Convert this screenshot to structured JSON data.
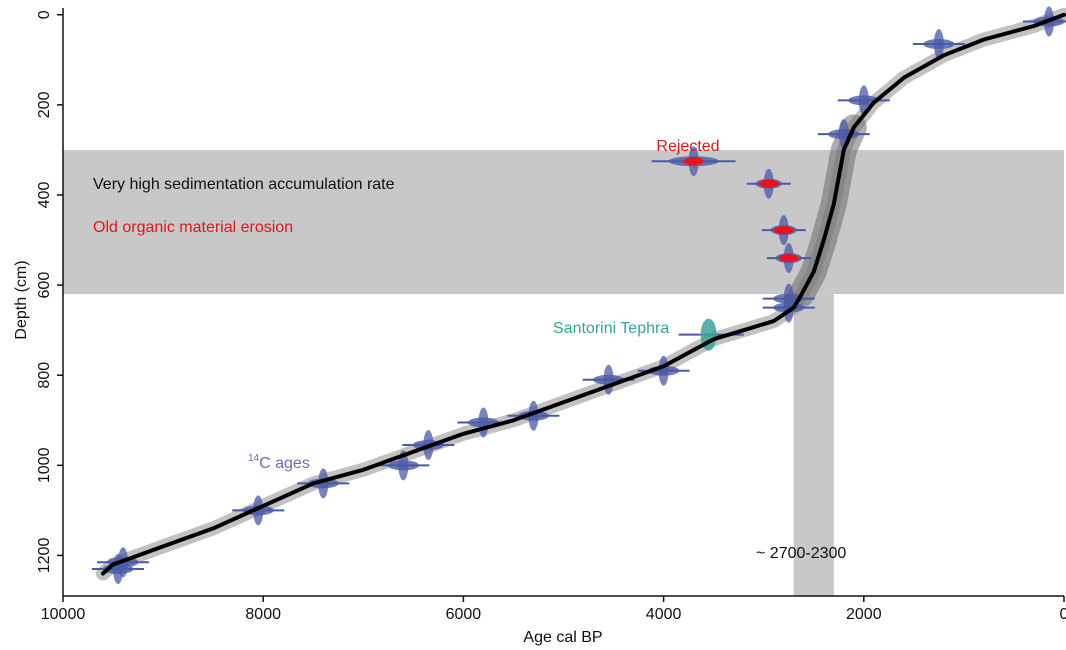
{
  "colors": {
    "model_line": "#000000",
    "uncertainty_band": "#8f8f8f",
    "highlight_band": "#c8c8c8",
    "c14_dates": "#4b5aa8",
    "rejected": "#e8131b",
    "tephra": "#3aa39b",
    "axis": "#111111"
  },
  "chart_data": {
    "type": "line",
    "xlabel": "Age cal BP",
    "ylabel": "Depth (cm)",
    "xlim": [
      10000,
      0
    ],
    "ylim": [
      1290,
      -15
    ],
    "x_ticks": [
      10000,
      8000,
      6000,
      4000,
      2000,
      0
    ],
    "x_tick_labels": [
      "10000",
      "8000",
      "6000",
      "4000",
      "2000",
      "0"
    ],
    "y_ticks": [
      0,
      200,
      400,
      600,
      800,
      1000,
      1200
    ],
    "y_tick_labels": [
      "0",
      "200",
      "400",
      "600",
      "800",
      "1000",
      "1200"
    ],
    "age_depth_model": {
      "age": [
        0,
        300,
        800,
        1200,
        1600,
        1900,
        2100,
        2200,
        2250,
        2300,
        2400,
        2500,
        2620,
        2700,
        2900,
        3200,
        3500,
        4000,
        4500,
        5000,
        5500,
        6000,
        6500,
        7000,
        7500,
        8000,
        8500,
        9000,
        9500,
        9600
      ],
      "depth": [
        0,
        25,
        55,
        90,
        140,
        195,
        250,
        300,
        360,
        420,
        500,
        570,
        620,
        650,
        680,
        700,
        720,
        780,
        820,
        860,
        900,
        930,
        970,
        1010,
        1040,
        1090,
        1140,
        1180,
        1220,
        1240
      ]
    },
    "highlight_depth_band": [
      300,
      620
    ],
    "highlight_age_band": [
      2700,
      2300
    ],
    "c14_dates": [
      {
        "age": 150,
        "depth": 15
      },
      {
        "age": 1250,
        "depth": 65
      },
      {
        "age": 2000,
        "depth": 190
      },
      {
        "age": 2200,
        "depth": 265
      },
      {
        "age": 2750,
        "depth": 630
      },
      {
        "age": 2750,
        "depth": 650
      },
      {
        "age": 4000,
        "depth": 790
      },
      {
        "age": 4550,
        "depth": 810
      },
      {
        "age": 5300,
        "depth": 890
      },
      {
        "age": 5800,
        "depth": 905
      },
      {
        "age": 6350,
        "depth": 955
      },
      {
        "age": 6600,
        "depth": 1000
      },
      {
        "age": 7400,
        "depth": 1040
      },
      {
        "age": 8050,
        "depth": 1100
      },
      {
        "age": 9400,
        "depth": 1215
      },
      {
        "age": 9450,
        "depth": 1230
      }
    ],
    "rejected_dates": [
      {
        "age": 3700,
        "depth": 325
      },
      {
        "age": 2950,
        "depth": 375
      },
      {
        "age": 2800,
        "depth": 478
      },
      {
        "age": 2750,
        "depth": 540
      }
    ],
    "tephra": {
      "age": 3550,
      "depth": 710
    },
    "annotations": {
      "high_rate": "Very high sedimentation accumulation rate",
      "erosion": "Old organic material erosion",
      "rejected": "Rejected",
      "santorini": "Santorini Tephra",
      "c14_sup": "14",
      "c14_rest": "C ages",
      "age_range": "~ 2700-2300"
    }
  }
}
